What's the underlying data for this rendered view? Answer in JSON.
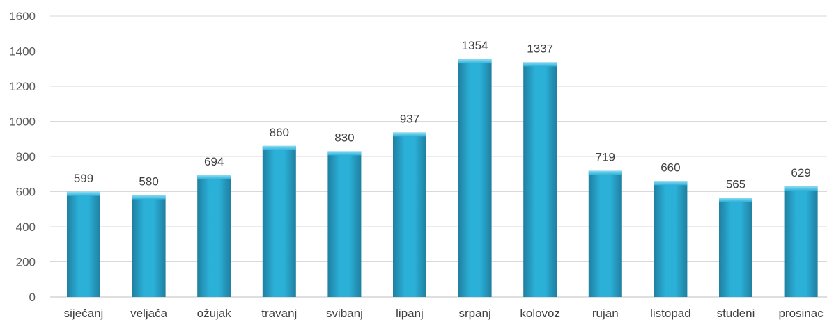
{
  "chart_data": {
    "type": "bar",
    "title": "",
    "xlabel": "",
    "ylabel": "",
    "categories": [
      "siječanj",
      "veljača",
      "ožujak",
      "travanj",
      "svibanj",
      "lipanj",
      "srpanj",
      "kolovoz",
      "rujan",
      "listopad",
      "studeni",
      "prosinac"
    ],
    "values": [
      599,
      580,
      694,
      860,
      830,
      937,
      1354,
      1337,
      719,
      660,
      565,
      629
    ],
    "ylim": [
      0,
      1600
    ],
    "yticks": [
      0,
      200,
      400,
      600,
      800,
      1000,
      1200,
      1400,
      1600
    ],
    "grid": true,
    "legend": "none",
    "data_labels": true,
    "bar_color": "#2bb0d8",
    "bar_color_light": "#8fdcf3",
    "bar_color_dark": "#1f7fa0"
  }
}
